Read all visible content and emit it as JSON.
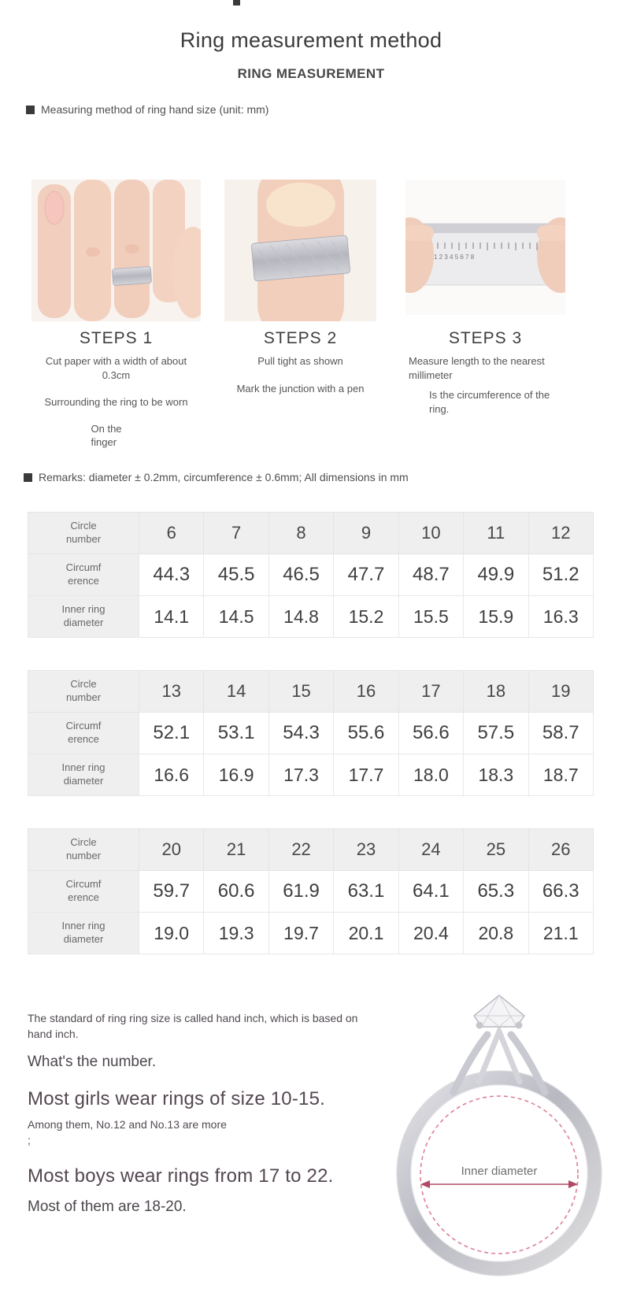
{
  "header": {
    "title": "Ring measurement method",
    "subtitle": "RING MEASUREMENT",
    "section_label": "Measuring method of ring hand size (unit: mm)"
  },
  "steps": [
    {
      "label": "STEPS 1",
      "lines": [
        "Cut paper with a width of about 0.3cm",
        "Surrounding the ring to be worn",
        "On the finger"
      ]
    },
    {
      "label": "STEPS 2",
      "lines": [
        "Pull tight as shown",
        "Mark the junction with a pen"
      ]
    },
    {
      "label": "STEPS 3",
      "lines": [
        "Measure length to the nearest millimeter",
        "Is the circumference of the ring."
      ]
    }
  ],
  "remarks": {
    "text": "Remarks: diameter ± 0.2mm, circumference ± 0.6mm; All dimensions in mm"
  },
  "table_row_headers": [
    [
      "Circle",
      "number"
    ],
    [
      "Circumf",
      "erence"
    ],
    [
      "Inner ring",
      "diameter"
    ]
  ],
  "tables": [
    {
      "circle": [
        "6",
        "7",
        "8",
        "9",
        "10",
        "11",
        "12"
      ],
      "circumference": [
        "44.3",
        "45.5",
        "46.5",
        "47.7",
        "48.7",
        "49.9",
        "51.2"
      ],
      "inner_diameter": [
        "14.1",
        "14.5",
        "14.8",
        "15.2",
        "15.5",
        "15.9",
        "16.3"
      ]
    },
    {
      "circle": [
        "13",
        "14",
        "15",
        "16",
        "17",
        "18",
        "19"
      ],
      "circumference": [
        "52.1",
        "53.1",
        "54.3",
        "55.6",
        "56.6",
        "57.5",
        "58.7"
      ],
      "inner_diameter": [
        "16.6",
        "16.9",
        "17.3",
        "17.7",
        "18.0",
        "18.3",
        "18.7"
      ]
    },
    {
      "circle": [
        "20",
        "21",
        "22",
        "23",
        "24",
        "25",
        "26"
      ],
      "circumference": [
        "59.7",
        "60.6",
        "61.9",
        "63.1",
        "64.1",
        "65.3",
        "66.3"
      ],
      "inner_diameter": [
        "19.0",
        "19.3",
        "19.7",
        "20.1",
        "20.4",
        "20.8",
        "21.1"
      ]
    }
  ],
  "notes": [
    "The standard of ring ring size is called hand inch, which is based on hand inch.",
    "What's the number.",
    "Most girls wear rings of size 10-15.",
    "Among them, No.12 and No.13 are more",
    ";",
    "Most boys wear rings from 17 to 22.",
    "Most of them are 18-20."
  ],
  "ring_diagram": {
    "label": "Inner diameter"
  },
  "colors": {
    "table_header_bg": "#efefef",
    "text_dark": "#3c3c3c",
    "text_body": "#555555",
    "ring_silver": "#c6c6cd",
    "dashed_circle_pink": "#dd7f97",
    "arrow_crimson": "#b24a66"
  }
}
